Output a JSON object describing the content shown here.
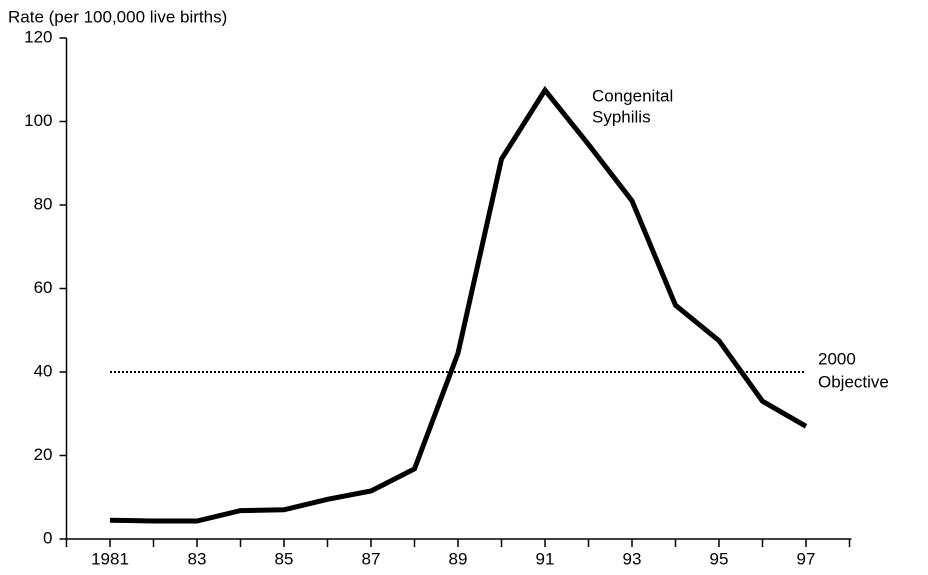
{
  "chart_data": {
    "type": "line",
    "y_axis_label": "Rate (per 100,000 live births)",
    "x": [
      1981,
      1982,
      1983,
      1984,
      1985,
      1986,
      1987,
      1988,
      1989,
      1990,
      1991,
      1992,
      1993,
      1994,
      1995,
      1996,
      1997
    ],
    "series": [
      {
        "name": "Congenital Syphilis",
        "color": "#000000",
        "values": [
          4.5,
          4.3,
          4.3,
          6.8,
          7,
          9.5,
          11.5,
          16.8,
          44.5,
          91,
          107.5,
          94.5,
          81,
          56,
          47.5,
          33,
          27
        ]
      }
    ],
    "series_label": [
      "Congenital",
      "Syphilis"
    ],
    "reference_line": {
      "value": 40,
      "xrange": [
        1981,
        1997
      ],
      "label": [
        "2000",
        "Objective"
      ],
      "style": "dotted"
    },
    "xlim": [
      1980,
      1998
    ],
    "xticks": [
      {
        "value": 1981,
        "label": "1981"
      },
      {
        "value": 1983,
        "label": "83"
      },
      {
        "value": 1985,
        "label": "85"
      },
      {
        "value": 1987,
        "label": "87"
      },
      {
        "value": 1989,
        "label": "89"
      },
      {
        "value": 1991,
        "label": "91"
      },
      {
        "value": 1993,
        "label": "93"
      },
      {
        "value": 1995,
        "label": "95"
      },
      {
        "value": 1997,
        "label": "97"
      }
    ],
    "xminorticks": [
      1980,
      1982,
      1984,
      1986,
      1988,
      1990,
      1992,
      1994,
      1996,
      1998
    ],
    "ylim": [
      0,
      120
    ],
    "yticks": [
      0,
      20,
      40,
      60,
      80,
      100,
      120
    ],
    "grid": false
  }
}
